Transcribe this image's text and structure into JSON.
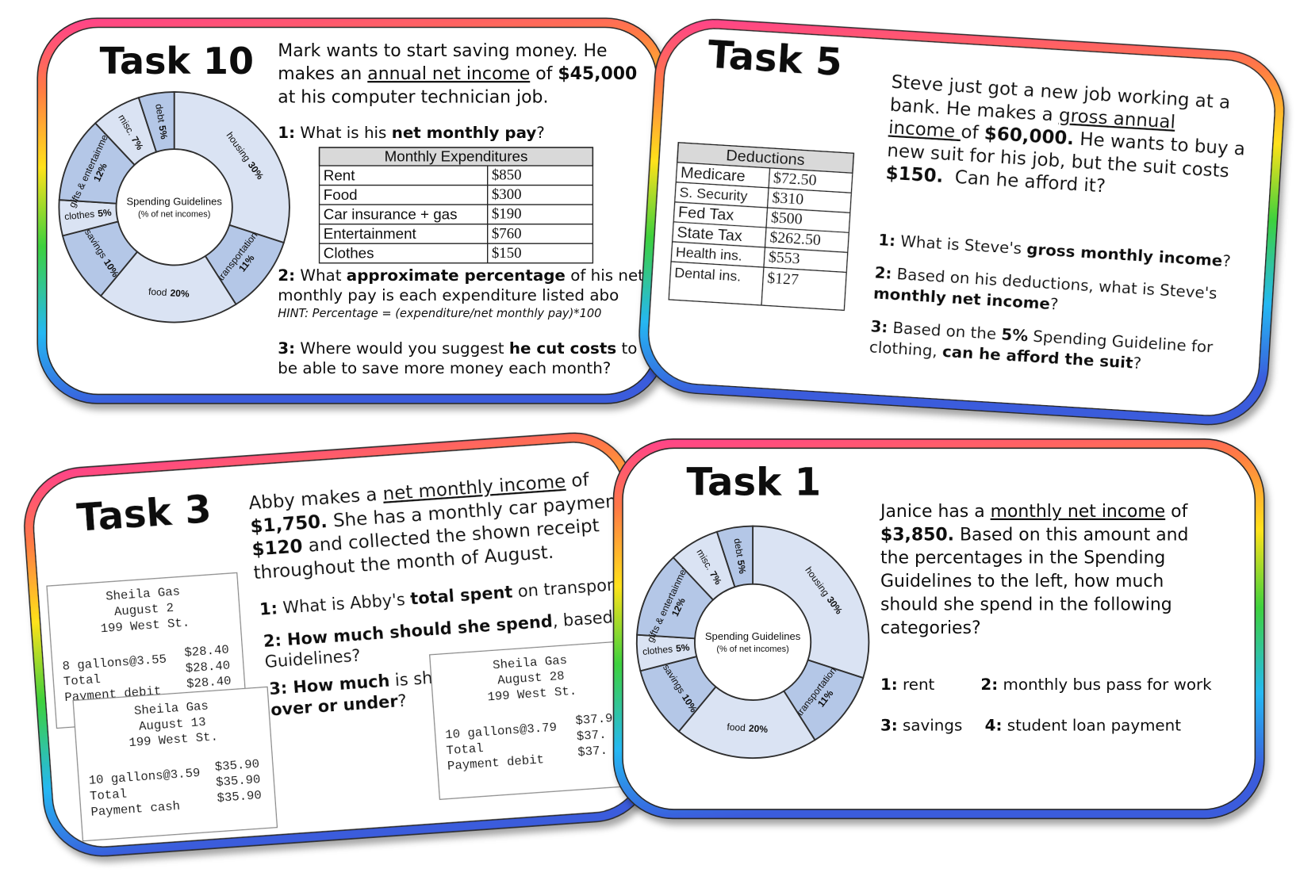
{
  "cards": [
    {
      "title": "Task 10",
      "intro": [
        [
          {
            "text": "Mark wants to start saving money. He"
          }
        ],
        [
          {
            "text": "makes an "
          },
          {
            "text": "annual net income",
            "underline": true
          },
          {
            "text": " of "
          },
          {
            "text": "$45,000",
            "bold": true
          }
        ],
        [
          {
            "text": "at his computer technician job."
          }
        ]
      ],
      "questions": [
        [
          {
            "text": "1:",
            "bold": true
          },
          {
            "text": " What is his "
          },
          {
            "text": "net monthly pay",
            "bold": true
          },
          {
            "text": "?"
          }
        ],
        [
          {
            "text": "2:",
            "bold": true
          },
          {
            "text": " What "
          },
          {
            "text": "approximate percentage",
            "bold": true
          },
          {
            "text": " of his net"
          }
        ],
        [
          {
            "text": "monthly pay is each expenditure listed abo"
          }
        ],
        [
          {
            "text": "HINT: Percentage = (expenditure/net monthly pay)*100",
            "italic": true
          }
        ],
        [
          {
            "text": "3:",
            "bold": true
          },
          {
            "text": " Where would you suggest "
          },
          {
            "text": "he cut costs",
            "bold": true
          },
          {
            "text": " to"
          }
        ],
        [
          {
            "text": "be able to save more money each month?"
          }
        ]
      ],
      "table": {
        "header": "Monthly Expenditures",
        "rows": [
          [
            "Rent",
            "$850"
          ],
          [
            "Food",
            "$300"
          ],
          [
            "Car insurance + gas",
            "$190"
          ],
          [
            "Entertainment",
            "$760"
          ],
          [
            "Clothes",
            "$150"
          ]
        ]
      },
      "chart": {
        "type": "pie",
        "title": "Spending Guidelines",
        "subtitle": "(% of net incomes)",
        "categories": [
          "housing",
          "transportation",
          "food",
          "savings",
          "clothes",
          "gifts & entertainment",
          "misc.",
          "debt"
        ],
        "values": [
          30,
          11,
          20,
          10,
          5,
          12,
          7,
          5
        ],
        "value_labels": [
          "30%",
          "11%",
          "20%",
          "10%",
          "5%",
          "12%",
          "7%",
          "5%"
        ],
        "colors": [
          "#dae3f3",
          "#b4c7e7",
          "#dae3f3",
          "#b4c7e7",
          "#dae3f3",
          "#b4c7e7",
          "#dae3f3",
          "#b4c7e7"
        ]
      }
    },
    {
      "title": "Task 5",
      "intro": [
        [
          {
            "text": "Steve just got a new job working at a"
          }
        ],
        [
          {
            "text": "bank. He makes a "
          },
          {
            "text": "gross annual",
            "underline": true
          }
        ],
        [
          {
            "text": "income ",
            "underline": true
          },
          {
            "text": "of "
          },
          {
            "text": "$60,000.",
            "bold": true
          },
          {
            "text": " He wants to buy a"
          }
        ],
        [
          {
            "text": "new suit for his job, but the suit costs"
          }
        ],
        [
          {
            "text": "$150.",
            "bold": true
          },
          {
            "text": "  Can he afford it?"
          }
        ]
      ],
      "questions": [
        [
          {
            "text": "1:",
            "bold": true
          },
          {
            "text": " What is Steve's "
          },
          {
            "text": "gross monthly income",
            "bold": true
          },
          {
            "text": "?"
          }
        ],
        [
          {
            "text": "2:",
            "bold": true
          },
          {
            "text": " Based on his deductions, what is Steve's"
          }
        ],
        [
          {
            "text": "monthly net income",
            "bold": true
          },
          {
            "text": "?"
          }
        ],
        [
          {
            "text": "3:",
            "bold": true
          },
          {
            "text": " Based on the "
          },
          {
            "text": "5%",
            "bold": true
          },
          {
            "text": " Spending Guideline for"
          }
        ],
        [
          {
            "text": "clothing, "
          },
          {
            "text": "can he afford the suit",
            "bold": true
          },
          {
            "text": "?"
          }
        ]
      ],
      "table": {
        "header": "Deductions",
        "rows": [
          [
            "Medicare",
            "$72.50"
          ],
          [
            "S. Security",
            "$310"
          ],
          [
            "Fed Tax",
            "$500"
          ],
          [
            "State Tax",
            "$262.50"
          ],
          [
            "Health ins.",
            "$553"
          ],
          [
            "Dental ins.",
            "$127"
          ]
        ]
      }
    },
    {
      "title": "Task 3",
      "intro": [
        [
          {
            "text": "Abby makes a "
          },
          {
            "text": "net monthly income",
            "underline": true
          },
          {
            "text": " of"
          }
        ],
        [
          {
            "text": "$1,750.",
            "bold": true
          },
          {
            "text": " She has a monthly car paymen"
          }
        ],
        [
          {
            "text": "$120",
            "bold": true
          },
          {
            "text": " and collected the shown receipt"
          }
        ],
        [
          {
            "text": "throughout the month of August."
          }
        ]
      ],
      "questions": [
        [
          {
            "text": "1:",
            "bold": true
          },
          {
            "text": " What is Abby's "
          },
          {
            "text": "total spent",
            "bold": true
          },
          {
            "text": " on transportat"
          }
        ],
        [
          {
            "text": "2: How much should she spend",
            "bold": true
          },
          {
            "text": ", based on"
          }
        ],
        [
          {
            "text": "Guidelines?"
          }
        ],
        [
          {
            "text": "3: How much",
            "bold": true
          },
          {
            "text": " is she"
          }
        ],
        [
          {
            "text": "over or under",
            "bold": true
          },
          {
            "text": "?"
          }
        ]
      ],
      "receipts": [
        {
          "header": [
            "Sheila Gas",
            "August 2",
            "199 West St."
          ],
          "items": [
            [
              "8 gallons@3.55",
              "$28.40"
            ],
            [
              "Total",
              "$28.40"
            ],
            [
              "Payment debit",
              "$28.40"
            ]
          ]
        },
        {
          "header": [
            "Sheila Gas",
            "August 13",
            "199 West St."
          ],
          "items": [
            [
              "10 gallons@3.59",
              "$35.90"
            ],
            [
              "Total",
              "$35.90"
            ],
            [
              "Payment cash",
              "$35.90"
            ]
          ]
        },
        {
          "header": [
            "Sheila Gas",
            "August 28",
            "199 West St."
          ],
          "items": [
            [
              "10 gallons@3.79",
              "$37.9"
            ],
            [
              "Total",
              "$37."
            ],
            [
              "Payment debit",
              "$37."
            ]
          ]
        }
      ]
    },
    {
      "title": "Task 1",
      "intro": [
        [
          {
            "text": "Janice has a "
          },
          {
            "text": "monthly net income",
            "underline": true
          },
          {
            "text": " of"
          }
        ],
        [
          {
            "text": "$3,850.",
            "bold": true
          },
          {
            "text": " Based on this amount and"
          }
        ],
        [
          {
            "text": "the percentages in the Spending"
          }
        ],
        [
          {
            "text": "Guidelines to the left, how much"
          }
        ],
        [
          {
            "text": "should she spend in the following"
          }
        ],
        [
          {
            "text": "categories?"
          }
        ]
      ],
      "questions": [
        [
          {
            "text": "1:",
            "bold": true
          },
          {
            "text": " rent"
          }
        ],
        [
          {
            "text": "2:",
            "bold": true
          },
          {
            "text": " monthly bus pass for work"
          }
        ],
        [
          {
            "text": "3:",
            "bold": true
          },
          {
            "text": " savings"
          }
        ],
        [
          {
            "text": "4:",
            "bold": true
          },
          {
            "text": " student loan payment"
          }
        ]
      ],
      "chart": {
        "type": "pie",
        "title": "Spending Guidelines",
        "subtitle": "(% of net incomes)",
        "categories": [
          "housing",
          "transportation",
          "food",
          "savings",
          "clothes",
          "gifts & entertainment",
          "misc.",
          "debt"
        ],
        "values": [
          30,
          11,
          20,
          10,
          5,
          12,
          7,
          5
        ],
        "value_labels": [
          "30%",
          "11%",
          "20%",
          "10%",
          "5%",
          "12%",
          "7%",
          "5%"
        ],
        "colors": [
          "#dae3f3",
          "#b4c7e7",
          "#dae3f3",
          "#b4c7e7",
          "#dae3f3",
          "#b4c7e7",
          "#dae3f3",
          "#b4c7e7"
        ]
      }
    }
  ]
}
